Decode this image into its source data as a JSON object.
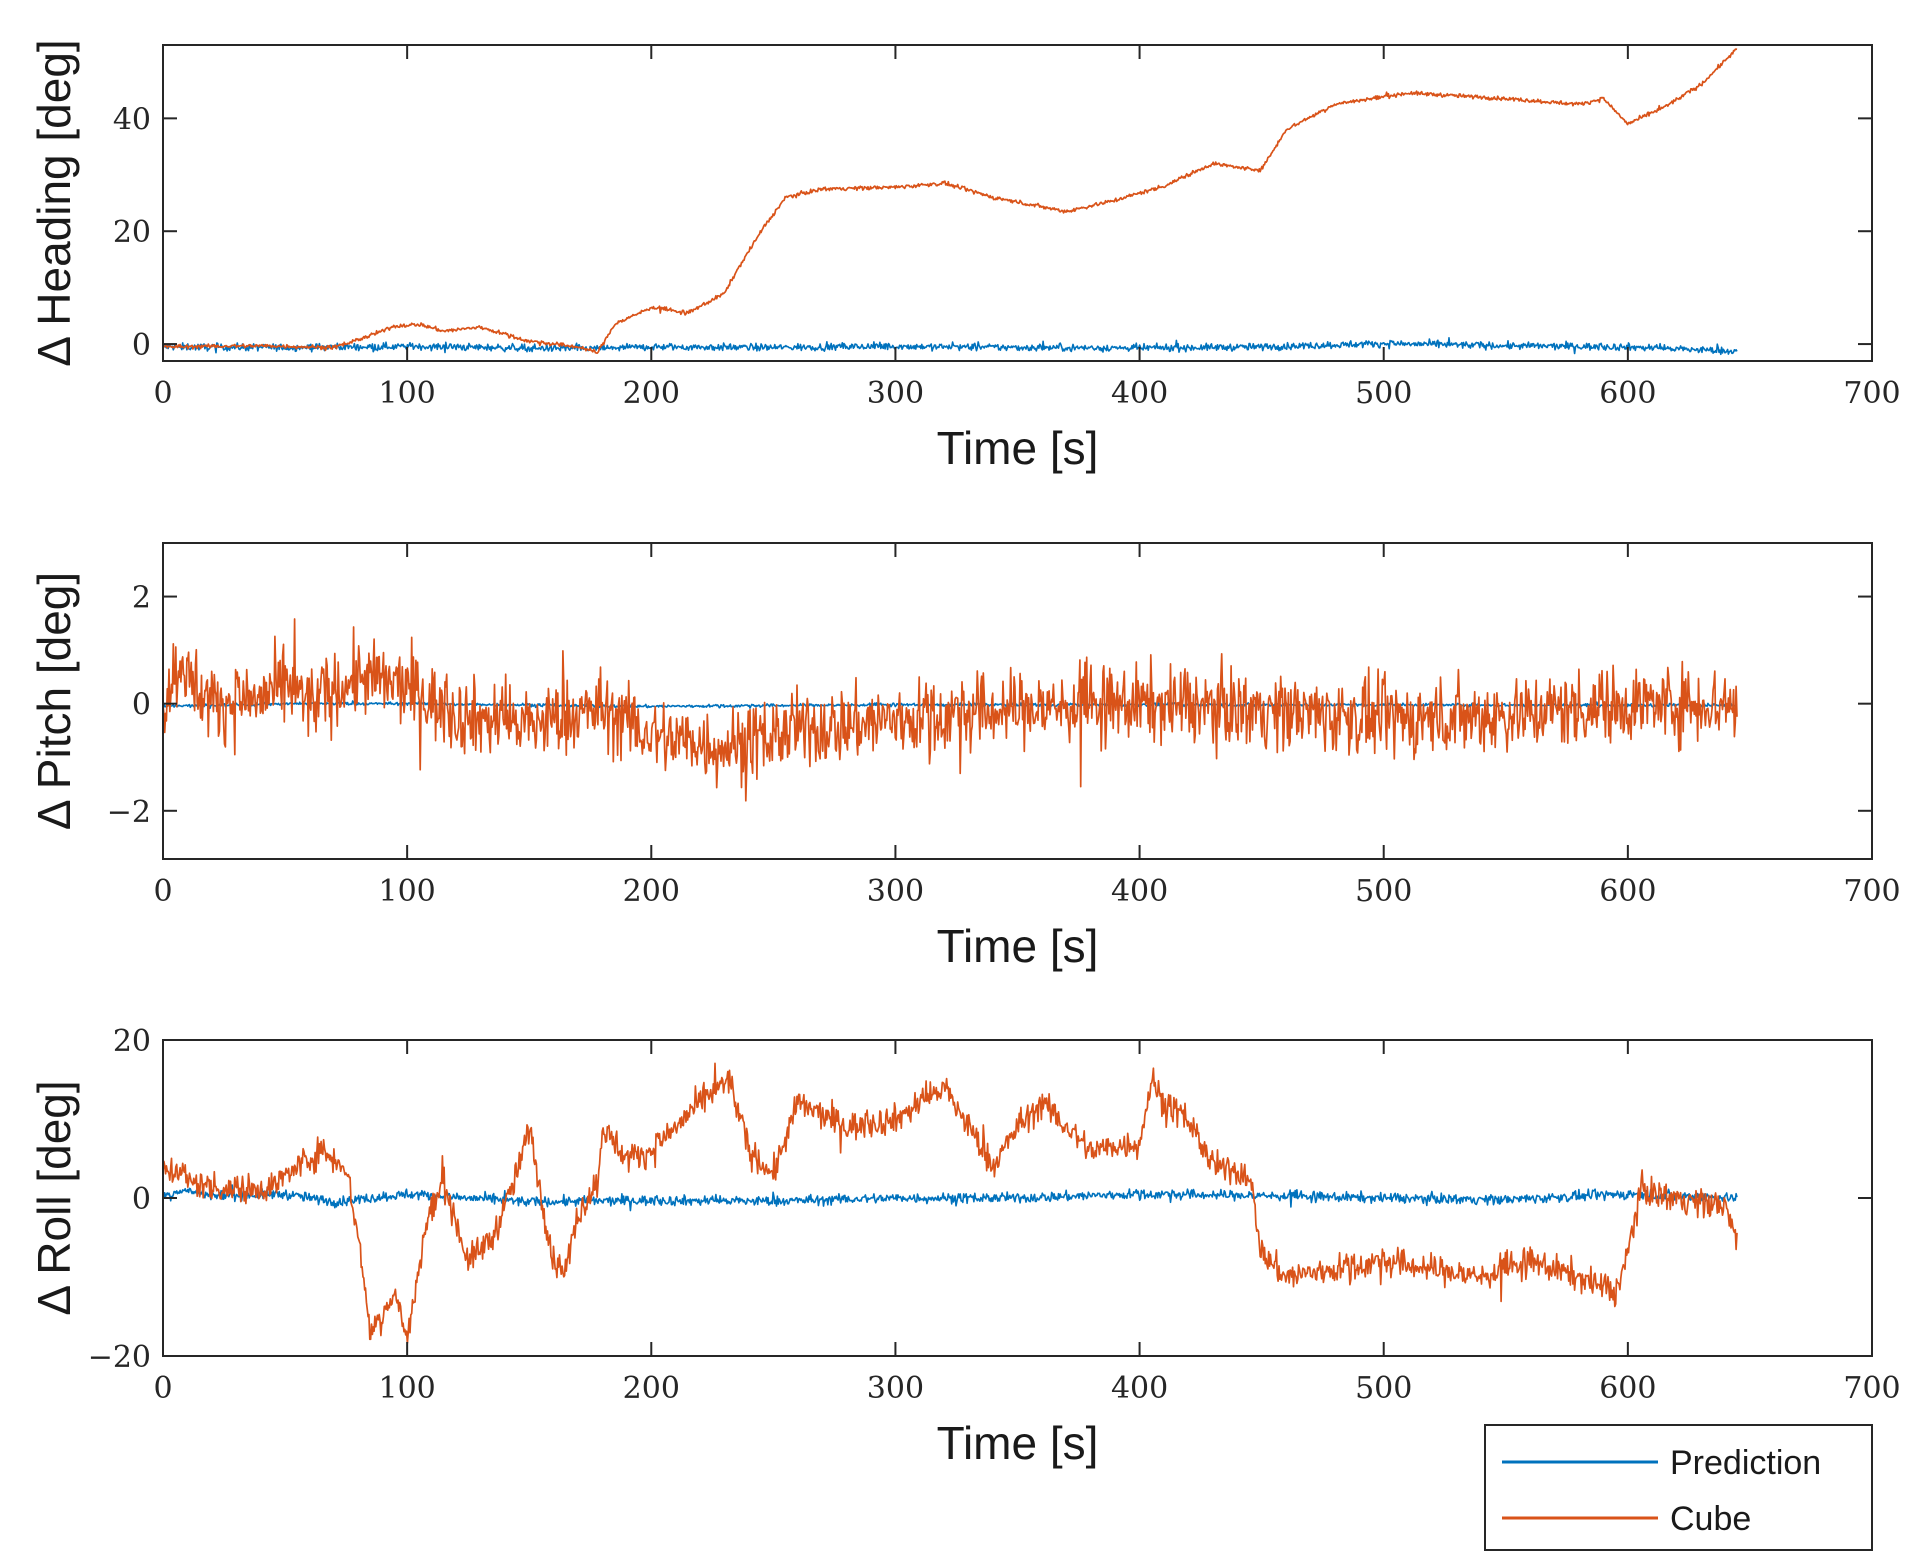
{
  "legend": {
    "entries": [
      {
        "label": "Prediction",
        "color": "#0072BD"
      },
      {
        "label": "Cube",
        "color": "#D95319"
      }
    ]
  },
  "chart_data": [
    {
      "type": "line",
      "ylabel": "Δ Heading [deg]",
      "xlabel": "Time [s]",
      "xlim": [
        0,
        700
      ],
      "ylim": [
        -3,
        53
      ],
      "xticks": [
        0,
        100,
        200,
        300,
        400,
        500,
        600,
        700
      ],
      "yticks": [
        0,
        20,
        40
      ],
      "ytick_labels": [
        "0",
        "20",
        "40"
      ],
      "series": [
        {
          "name": "Prediction",
          "noise": 0.45,
          "x": [
            0,
            50,
            100,
            150,
            175,
            200,
            250,
            300,
            350,
            400,
            450,
            500,
            550,
            600,
            645
          ],
          "y": [
            -0.5,
            -0.6,
            -0.4,
            -0.7,
            -0.8,
            -0.5,
            -0.6,
            -0.4,
            -0.6,
            -0.7,
            -0.5,
            0.1,
            -0.3,
            -0.5,
            -1.3
          ]
        },
        {
          "name": "Cube",
          "noise": 0.25,
          "x": [
            0,
            40,
            70,
            85,
            95,
            105,
            115,
            130,
            150,
            170,
            178,
            185,
            200,
            215,
            230,
            235,
            245,
            255,
            270,
            300,
            320,
            340,
            370,
            390,
            410,
            420,
            430,
            445,
            450,
            460,
            480,
            510,
            550,
            580,
            590,
            600,
            615,
            630,
            645
          ],
          "y": [
            -0.5,
            -0.3,
            -0.6,
            1.5,
            3.2,
            3.5,
            2.3,
            3.0,
            0.5,
            -0.5,
            -1.5,
            3.5,
            6.5,
            5.5,
            9.0,
            13,
            20,
            26,
            27.5,
            27.8,
            28.5,
            26,
            23.5,
            25.5,
            28,
            30,
            32,
            31,
            31,
            38,
            42.5,
            44.5,
            43.5,
            42.5,
            43.5,
            39,
            42,
            46,
            52.5
          ]
        }
      ]
    },
    {
      "type": "line",
      "ylabel": "Δ Pitch [deg]",
      "xlabel": "Time [s]",
      "xlim": [
        0,
        700
      ],
      "ylim": [
        -2.9,
        3
      ],
      "xticks": [
        0,
        100,
        200,
        300,
        400,
        500,
        600,
        700
      ],
      "yticks": [
        -2,
        0,
        2
      ],
      "ytick_labels": [
        "−2",
        "0",
        "2"
      ],
      "series": [
        {
          "name": "Prediction",
          "noise": 0.02,
          "x": [
            0,
            50,
            100,
            200,
            300,
            400,
            500,
            600,
            645
          ],
          "y": [
            -0.05,
            0.0,
            0.0,
            -0.05,
            -0.02,
            -0.02,
            -0.02,
            -0.03,
            -0.02
          ]
        },
        {
          "name": "Cube",
          "noise": 0.5,
          "x": [
            0,
            8,
            10,
            20,
            40,
            52,
            60,
            80,
            100,
            120,
            150,
            180,
            200,
            230,
            260,
            300,
            350,
            400,
            450,
            500,
            550,
            600,
            645
          ],
          "y": [
            0,
            0.9,
            0.5,
            0,
            0.1,
            0.3,
            0.0,
            0.5,
            0.3,
            -0.2,
            -0.4,
            -0.1,
            -0.6,
            -0.8,
            -0.5,
            -0.3,
            -0.1,
            0.0,
            -0.1,
            -0.3,
            -0.2,
            0.0,
            0.0
          ]
        }
      ]
    },
    {
      "type": "line",
      "ylabel": "Δ Roll [deg]",
      "xlabel": "Time [s]",
      "xlim": [
        0,
        700
      ],
      "ylim": [
        -20,
        20
      ],
      "xticks": [
        0,
        100,
        200,
        300,
        400,
        500,
        600,
        700
      ],
      "yticks": [
        -20,
        0,
        20
      ],
      "ytick_labels": [
        "−20",
        "0",
        "20"
      ],
      "series": [
        {
          "name": "Prediction",
          "noise": 0.45,
          "x": [
            0,
            8,
            20,
            50,
            70,
            100,
            150,
            200,
            250,
            300,
            350,
            400,
            450,
            500,
            550,
            600,
            645
          ],
          "y": [
            0.2,
            1.0,
            0.3,
            0.5,
            -0.5,
            0.5,
            -0.5,
            -0.3,
            -0.4,
            0.0,
            0.0,
            0.5,
            0.3,
            0.0,
            -0.2,
            0.5,
            0.0
          ]
        },
        {
          "name": "Cube",
          "noise": 1.3,
          "x": [
            0,
            8,
            10,
            20,
            30,
            45,
            55,
            65,
            75,
            80,
            85,
            95,
            100,
            108,
            115,
            125,
            135,
            145,
            150,
            155,
            160,
            165,
            170,
            178,
            180,
            190,
            200,
            210,
            220,
            232,
            240,
            250,
            260,
            280,
            300,
            320,
            330,
            340,
            350,
            360,
            380,
            400,
            405,
            410,
            420,
            430,
            445,
            450,
            460,
            480,
            500,
            520,
            540,
            560,
            580,
            595,
            600,
            605,
            620,
            640,
            645
          ],
          "y": [
            3.5,
            3.5,
            2.0,
            1.5,
            1.0,
            1.5,
            4.0,
            6.0,
            4.0,
            -5.0,
            -17.0,
            -12.0,
            -18.0,
            -3.0,
            2.0,
            -8.0,
            -5.0,
            3.0,
            9.0,
            0.0,
            -8.0,
            -9.0,
            -2.0,
            2.0,
            9.0,
            5.0,
            6.0,
            9.0,
            12.0,
            15.0,
            6.0,
            3.0,
            12.0,
            9.0,
            10.0,
            14.0,
            9.0,
            4.0,
            9.0,
            12.0,
            6.0,
            7.0,
            15.0,
            12.0,
            10.0,
            4.0,
            3.0,
            -7.0,
            -10.0,
            -9.0,
            -8.0,
            -9.0,
            -10.0,
            -8.0,
            -10.0,
            -12.0,
            -7.0,
            1.0,
            0.0,
            -1.0,
            -6.0
          ]
        }
      ]
    }
  ]
}
